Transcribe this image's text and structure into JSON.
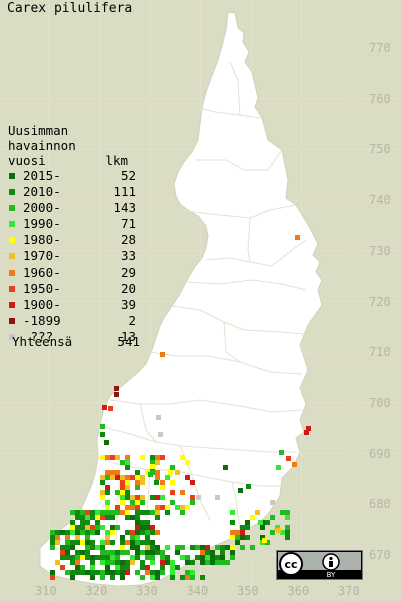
{
  "title": "Carex pilulifera",
  "legend": {
    "heading": [
      "Uusimman",
      "havainnon"
    ],
    "col_year": "vuosi",
    "col_count": "lkm",
    "items": [
      {
        "label": "2015-",
        "count": "52",
        "color": "#0a6e0a"
      },
      {
        "label": "2010-",
        "count": "111",
        "color": "#108a10"
      },
      {
        "label": "2000-",
        "count": "143",
        "color": "#21bb21"
      },
      {
        "label": "1990-",
        "count": "71",
        "color": "#34e834"
      },
      {
        "label": "1980-",
        "count": "28",
        "color": "#ffff00"
      },
      {
        "label": "1970-",
        "count": "33",
        "color": "#f0c020"
      },
      {
        "label": "1960-",
        "count": "29",
        "color": "#f07a1a"
      },
      {
        "label": "1950-",
        "count": "20",
        "color": "#e84018"
      },
      {
        "label": "1900-",
        "count": "39",
        "color": "#d01a1a"
      },
      {
        "label": "-1899",
        "count": "2",
        "color": "#8c1414"
      },
      {
        "label": " ???",
        "count": "13",
        "color": "#c8c8c8"
      }
    ],
    "total_label": "Yhteensä",
    "total_count": "541"
  },
  "axes": {
    "y_labels": [
      "770",
      "760",
      "750",
      "740",
      "730",
      "720",
      "710",
      "700",
      "690",
      "680",
      "670"
    ],
    "x_labels": [
      "310",
      "320",
      "330",
      "340",
      "350",
      "360",
      "370"
    ]
  },
  "license": {
    "cc": "cc",
    "by": "BY"
  },
  "colors": {
    "background": "#dbdcc4",
    "land": "#ffffff",
    "grid": "#e0e0cc",
    "border": "#dcdcc8"
  }
}
